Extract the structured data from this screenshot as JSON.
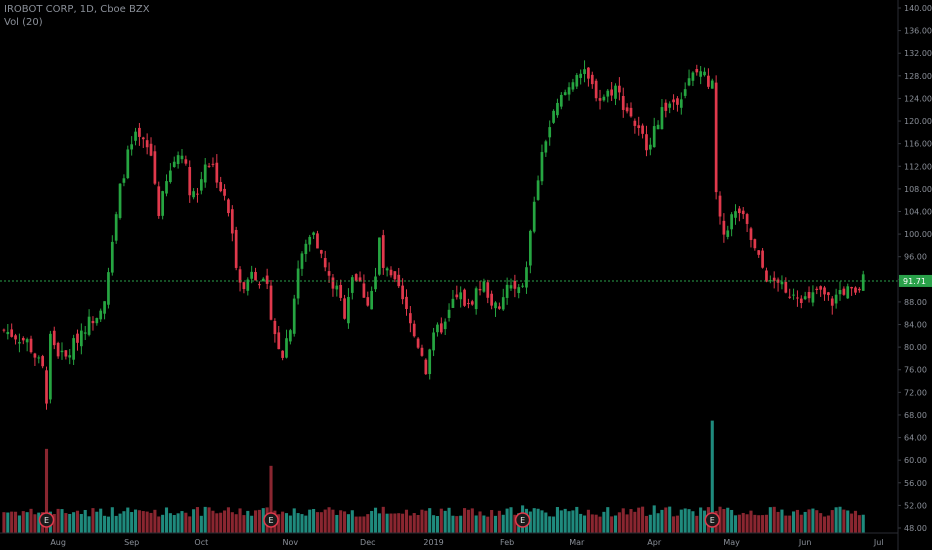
{
  "header": {
    "title": "IROBOT CORP, 1D, Cboe BZX",
    "volume_label": "Vol (20)"
  },
  "colors": {
    "background": "#000000",
    "up": "#26a541",
    "down": "#e0394c",
    "vol_up": "#1f8a7d",
    "vol_down": "#8a2630",
    "price_line": "#2aa14a",
    "axis_text": "#8a8f98"
  },
  "chart_data": {
    "type": "candlestick",
    "ylim": [
      48,
      140
    ],
    "y_ticks": [
      "48.00",
      "52.00",
      "56.00",
      "60.00",
      "64.00",
      "68.00",
      "72.00",
      "76.00",
      "80.00",
      "84.00",
      "88.00",
      "92.00",
      "96.00",
      "100.00",
      "104.00",
      "108.00",
      "112.00",
      "116.00",
      "120.00",
      "124.00",
      "128.00",
      "132.00",
      "136.00",
      "140.00"
    ],
    "x_ticks": [
      {
        "label": "Aug",
        "index": 14
      },
      {
        "label": "Sep",
        "index": 33
      },
      {
        "label": "Oct",
        "index": 51
      },
      {
        "label": "Nov",
        "index": 74
      },
      {
        "label": "Dec",
        "index": 94
      },
      {
        "label": "2019",
        "index": 111
      },
      {
        "label": "Feb",
        "index": 130
      },
      {
        "label": "Mar",
        "index": 148
      },
      {
        "label": "Apr",
        "index": 168
      },
      {
        "label": "May",
        "index": 188
      },
      {
        "label": "Jun",
        "index": 207
      },
      {
        "label": "Jul",
        "index": 226
      }
    ],
    "last_price": "91.71",
    "last_price_value": 91.71,
    "earnings_markers": [
      {
        "label": "E",
        "index": 11
      },
      {
        "label": "E",
        "index": 69
      },
      {
        "label": "E",
        "index": 134
      },
      {
        "label": "E",
        "index": 183
      }
    ],
    "close_path": [
      [
        0,
        83
      ],
      [
        6,
        81
      ],
      [
        10,
        76
      ],
      [
        11,
        71
      ],
      [
        12,
        82
      ],
      [
        14,
        79
      ],
      [
        16,
        78
      ],
      [
        20,
        83
      ],
      [
        24,
        86
      ],
      [
        26,
        89
      ],
      [
        28,
        98
      ],
      [
        30,
        108
      ],
      [
        32,
        114
      ],
      [
        34,
        117
      ],
      [
        36,
        116
      ],
      [
        38,
        114
      ],
      [
        40,
        104
      ],
      [
        42,
        109
      ],
      [
        44,
        113
      ],
      [
        46,
        115
      ],
      [
        48,
        108
      ],
      [
        50,
        107
      ],
      [
        52,
        113
      ],
      [
        54,
        112
      ],
      [
        56,
        108
      ],
      [
        58,
        104
      ],
      [
        60,
        95
      ],
      [
        62,
        90
      ],
      [
        64,
        94
      ],
      [
        66,
        92
      ],
      [
        68,
        90
      ],
      [
        69,
        86
      ],
      [
        70,
        82
      ],
      [
        72,
        79
      ],
      [
        74,
        84
      ],
      [
        76,
        94
      ],
      [
        78,
        98
      ],
      [
        80,
        101
      ],
      [
        82,
        96
      ],
      [
        84,
        92
      ],
      [
        86,
        90
      ],
      [
        88,
        86
      ],
      [
        90,
        93
      ],
      [
        92,
        91
      ],
      [
        94,
        88
      ],
      [
        96,
        92
      ],
      [
        97,
        99
      ],
      [
        98,
        94
      ],
      [
        100,
        92
      ],
      [
        102,
        90
      ],
      [
        104,
        86
      ],
      [
        106,
        82
      ],
      [
        108,
        79
      ],
      [
        109,
        76
      ],
      [
        110,
        80
      ],
      [
        112,
        83
      ],
      [
        114,
        84
      ],
      [
        116,
        88
      ],
      [
        118,
        89
      ],
      [
        120,
        87
      ],
      [
        122,
        90
      ],
      [
        124,
        91
      ],
      [
        126,
        88
      ],
      [
        128,
        86
      ],
      [
        130,
        91
      ],
      [
        132,
        90
      ],
      [
        134,
        90
      ],
      [
        136,
        100
      ],
      [
        138,
        110
      ],
      [
        140,
        117
      ],
      [
        142,
        121
      ],
      [
        144,
        124
      ],
      [
        146,
        126
      ],
      [
        148,
        129
      ],
      [
        150,
        128
      ],
      [
        152,
        126
      ],
      [
        154,
        124
      ],
      [
        156,
        125
      ],
      [
        158,
        126
      ],
      [
        160,
        123
      ],
      [
        162,
        121
      ],
      [
        164,
        118
      ],
      [
        166,
        116
      ],
      [
        168,
        118
      ],
      [
        170,
        122
      ],
      [
        172,
        123
      ],
      [
        174,
        124
      ],
      [
        176,
        126
      ],
      [
        178,
        128
      ],
      [
        180,
        129
      ],
      [
        182,
        127
      ],
      [
        183,
        128
      ],
      [
        184,
        107
      ],
      [
        185,
        102
      ],
      [
        186,
        100
      ],
      [
        188,
        103
      ],
      [
        190,
        104
      ],
      [
        192,
        101
      ],
      [
        194,
        97
      ],
      [
        196,
        94
      ],
      [
        198,
        91
      ],
      [
        200,
        92
      ],
      [
        202,
        89
      ],
      [
        204,
        90
      ],
      [
        206,
        89
      ],
      [
        208,
        88
      ],
      [
        210,
        90
      ],
      [
        212,
        89
      ],
      [
        214,
        88
      ],
      [
        216,
        90
      ],
      [
        218,
        90
      ],
      [
        220,
        89
      ],
      [
        222,
        92
      ]
    ],
    "volume_spikes": [
      {
        "index": 11,
        "value": 62
      },
      {
        "index": 69,
        "value": 59
      },
      {
        "index": 134,
        "value": 52
      },
      {
        "index": 168,
        "value": 52
      },
      {
        "index": 183,
        "value": 67
      }
    ],
    "volume_base": 50
  }
}
